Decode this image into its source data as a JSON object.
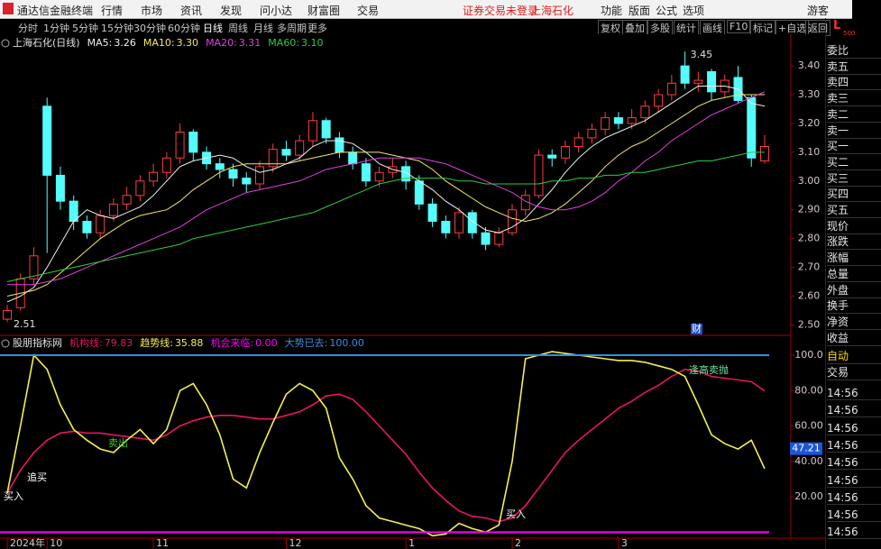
{
  "menu": {
    "brand": "通达信金融终端",
    "items": [
      "行情",
      "市场",
      "资讯",
      "发现",
      "问小达",
      "财富圈",
      "交易"
    ],
    "notice": "证券交易未登录",
    "stock": "上海石化",
    "right_items": [
      "功能",
      "版面",
      "公式",
      "选项"
    ],
    "user": "游客"
  },
  "toolbar": {
    "periods": [
      "分时",
      "1分钟",
      "5分钟",
      "15分钟",
      "30分钟",
      "60分钟",
      "日线",
      "周线",
      "月线",
      "多周期",
      "更多"
    ],
    "active": "日线",
    "tools": [
      "复权",
      "叠加",
      "多股",
      "统计",
      "画线",
      "F10",
      "标记",
      "+自选",
      "返回"
    ]
  },
  "sidebar": {
    "corner": "L",
    "corner_sub": "500",
    "quote_rows": [
      "委比",
      "卖五",
      "卖四",
      "卖三",
      "卖二",
      "卖一",
      "买一",
      "买二",
      "买三",
      "买四",
      "买五",
      "现价",
      "涨跌",
      "涨幅",
      "总量",
      "外盘",
      "换手",
      "净资",
      "收益"
    ],
    "trade_rows": [
      "自动",
      "交易"
    ],
    "times": [
      "14:56",
      "14:56",
      "14:56",
      "14:56",
      "14:56",
      "14:56",
      "14:56",
      "14:56",
      "14:56"
    ]
  },
  "chart_data": [
    {
      "type": "candlestick",
      "title": "上海石化(日线)",
      "legend_separator": ":",
      "categories": [
        "2024年",
        null,
        null,
        "10",
        null,
        null,
        null,
        null,
        null,
        null,
        null,
        "11",
        null,
        null,
        null,
        null,
        null,
        null,
        null,
        null,
        null,
        "12",
        null,
        null,
        null,
        null,
        null,
        null,
        null,
        null,
        "1",
        null,
        null,
        null,
        null,
        null,
        null,
        null,
        "2",
        null,
        null,
        null,
        null,
        null,
        null,
        null,
        "3",
        null,
        null,
        null,
        null,
        null,
        null,
        null,
        null,
        null,
        null,
        null
      ],
      "open": [
        2.52,
        2.56,
        2.66,
        3.26,
        3.02,
        2.93,
        2.86,
        2.82,
        2.88,
        2.92,
        2.95,
        3.0,
        3.03,
        3.08,
        3.17,
        3.1,
        3.06,
        3.04,
        3.01,
        2.99,
        3.05,
        3.11,
        3.09,
        3.14,
        3.21,
        3.15,
        3.1,
        3.06,
        3.0,
        3.03,
        3.05,
        3.0,
        2.92,
        2.86,
        2.82,
        2.89,
        2.82,
        2.78,
        2.82,
        2.9,
        2.95,
        3.09,
        3.08,
        3.12,
        3.15,
        3.18,
        3.22,
        3.2,
        3.22,
        3.26,
        3.3,
        3.4,
        3.34,
        3.38,
        3.31,
        3.36,
        3.29,
        3.07
      ],
      "high": [
        2.57,
        2.68,
        2.77,
        3.29,
        3.05,
        2.95,
        2.88,
        2.9,
        2.94,
        2.98,
        3.02,
        3.06,
        3.1,
        3.2,
        3.18,
        3.12,
        3.08,
        3.06,
        3.03,
        3.07,
        3.13,
        3.14,
        3.16,
        3.24,
        3.22,
        3.17,
        3.12,
        3.08,
        3.05,
        3.08,
        3.07,
        3.02,
        2.94,
        2.88,
        2.91,
        2.9,
        2.84,
        2.84,
        2.92,
        2.97,
        3.11,
        3.11,
        3.14,
        3.17,
        3.2,
        3.24,
        3.24,
        3.25,
        3.28,
        3.32,
        3.37,
        3.45,
        3.38,
        3.39,
        3.37,
        3.4,
        3.3,
        3.16
      ],
      "low": [
        2.51,
        2.55,
        2.64,
        2.75,
        2.9,
        2.83,
        2.8,
        2.8,
        2.86,
        2.9,
        2.93,
        2.98,
        3.01,
        3.06,
        3.07,
        3.04,
        3.01,
        2.98,
        2.96,
        2.97,
        3.03,
        3.07,
        3.07,
        3.12,
        3.13,
        3.08,
        3.04,
        2.98,
        2.98,
        3.01,
        2.97,
        2.9,
        2.84,
        2.8,
        2.8,
        2.8,
        2.76,
        2.77,
        2.81,
        2.88,
        2.94,
        3.05,
        3.06,
        3.1,
        3.13,
        3.16,
        3.18,
        3.18,
        3.2,
        3.24,
        3.28,
        3.32,
        3.31,
        3.28,
        3.29,
        3.27,
        3.05,
        3.06
      ],
      "close": [
        2.55,
        2.66,
        2.74,
        3.02,
        2.93,
        2.86,
        2.82,
        2.88,
        2.92,
        2.95,
        3.0,
        3.03,
        3.08,
        3.17,
        3.1,
        3.06,
        3.04,
        3.01,
        2.99,
        3.05,
        3.11,
        3.09,
        3.14,
        3.21,
        3.15,
        3.1,
        3.06,
        3.0,
        3.03,
        3.05,
        3.0,
        2.92,
        2.86,
        2.82,
        2.89,
        2.82,
        2.78,
        2.82,
        2.9,
        2.95,
        3.09,
        3.08,
        3.12,
        3.15,
        3.18,
        3.22,
        3.2,
        3.22,
        3.26,
        3.3,
        3.34,
        3.34,
        3.35,
        3.31,
        3.35,
        3.28,
        3.08,
        3.12
      ],
      "up_color": "#ff3c3c",
      "down_color": "#54fcfc",
      "series": [
        {
          "name": "MA5",
          "color": "#f0f0f0",
          "legend_value": "3.26",
          "values": [
            2.58,
            2.6,
            2.63,
            2.7,
            2.78,
            2.86,
            2.9,
            2.88,
            2.87,
            2.89,
            2.91,
            2.95,
            3.0,
            3.05,
            3.07,
            3.08,
            3.09,
            3.08,
            3.05,
            3.03,
            3.04,
            3.06,
            3.08,
            3.12,
            3.14,
            3.14,
            3.13,
            3.1,
            3.06,
            3.04,
            3.03,
            3.0,
            2.97,
            2.93,
            2.9,
            2.86,
            2.83,
            2.82,
            2.84,
            2.87,
            2.92,
            2.97,
            3.03,
            3.08,
            3.12,
            3.15,
            3.17,
            3.19,
            3.21,
            3.24,
            3.27,
            3.3,
            3.33,
            3.33,
            3.33,
            3.32,
            3.27,
            3.26
          ]
        },
        {
          "name": "MA10",
          "color": "#f5e663",
          "legend_value": "3.30",
          "values": [
            2.6,
            2.61,
            2.62,
            2.64,
            2.68,
            2.72,
            2.76,
            2.8,
            2.83,
            2.86,
            2.88,
            2.89,
            2.9,
            2.93,
            2.97,
            3.0,
            3.03,
            3.05,
            3.06,
            3.06,
            3.06,
            3.06,
            3.07,
            3.08,
            3.09,
            3.1,
            3.1,
            3.1,
            3.1,
            3.09,
            3.08,
            3.07,
            3.04,
            3.0,
            2.97,
            2.94,
            2.91,
            2.89,
            2.87,
            2.86,
            2.87,
            2.89,
            2.92,
            2.96,
            3.0,
            3.05,
            3.09,
            3.12,
            3.14,
            3.17,
            3.2,
            3.23,
            3.26,
            3.28,
            3.29,
            3.3,
            3.3,
            3.3
          ]
        },
        {
          "name": "MA20",
          "color": "#e040e0",
          "legend_value": "3.31",
          "values": [
            2.64,
            2.64,
            2.64,
            2.65,
            2.66,
            2.68,
            2.7,
            2.72,
            2.74,
            2.76,
            2.78,
            2.8,
            2.82,
            2.84,
            2.87,
            2.9,
            2.92,
            2.94,
            2.96,
            2.97,
            2.98,
            2.99,
            3.0,
            3.02,
            3.04,
            3.05,
            3.06,
            3.07,
            3.08,
            3.08,
            3.08,
            3.08,
            3.07,
            3.06,
            3.04,
            3.02,
            3.0,
            2.98,
            2.96,
            2.93,
            2.91,
            2.9,
            2.9,
            2.91,
            2.93,
            2.96,
            3.0,
            3.03,
            3.07,
            3.1,
            3.14,
            3.17,
            3.2,
            3.23,
            3.25,
            3.27,
            3.29,
            3.31
          ]
        },
        {
          "name": "MA60",
          "color": "#2ecc40",
          "legend_value": "3.10",
          "values": [
            2.65,
            2.66,
            2.67,
            2.68,
            2.69,
            2.7,
            2.71,
            2.72,
            2.73,
            2.74,
            2.75,
            2.76,
            2.77,
            2.78,
            2.8,
            2.81,
            2.82,
            2.83,
            2.84,
            2.85,
            2.86,
            2.87,
            2.88,
            2.89,
            2.91,
            2.93,
            2.95,
            2.97,
            2.99,
            3.0,
            3.01,
            3.01,
            3.01,
            3.01,
            3.0,
            3.0,
            2.99,
            2.99,
            2.99,
            2.99,
            2.99,
            3.0,
            3.0,
            3.01,
            3.01,
            3.02,
            3.02,
            3.03,
            3.03,
            3.04,
            3.05,
            3.06,
            3.07,
            3.07,
            3.08,
            3.09,
            3.1,
            3.1
          ]
        }
      ],
      "ylim": [
        2.47,
        3.51
      ],
      "yticks": [
        {
          "value": 3.4,
          "label": "3.40"
        },
        {
          "value": 3.3,
          "label": "3.30"
        },
        {
          "value": 3.2,
          "label": "3.20"
        },
        {
          "value": 3.1,
          "label": "3.10"
        },
        {
          "value": 3.0,
          "label": "3.00"
        },
        {
          "value": 2.9,
          "label": "2.90"
        },
        {
          "value": 2.8,
          "label": "2.80"
        },
        {
          "value": 2.7,
          "label": "2.70"
        },
        {
          "value": 2.6,
          "label": "2.60"
        },
        {
          "value": 2.5,
          "label": "2.50"
        }
      ],
      "max_label": 3.45,
      "min_label": 2.51,
      "event_label": "财"
    },
    {
      "type": "line",
      "title": "股朋指标网",
      "legend_separator": ":",
      "series": [
        {
          "name": "机构线",
          "color": "#e8175d",
          "values": [
            22,
            35,
            45,
            52,
            56,
            57,
            56,
            56,
            55,
            54,
            53,
            52,
            55,
            60,
            63,
            65,
            66,
            66,
            65,
            64,
            64,
            66,
            68,
            72,
            77,
            78,
            75,
            68,
            60,
            52,
            44,
            34,
            25,
            18,
            12,
            9,
            8,
            6,
            8,
            15,
            25,
            35,
            45,
            52,
            58,
            64,
            70,
            74,
            79,
            83,
            88,
            92,
            91,
            88,
            87,
            86,
            85,
            79.83
          ]
        },
        {
          "name": "趋势线",
          "color": "#f5f050",
          "values": [
            22,
            60,
            100,
            92,
            72,
            58,
            52,
            47,
            45,
            52,
            58,
            50,
            58,
            80,
            84,
            72,
            55,
            30,
            25,
            45,
            62,
            78,
            84,
            80,
            70,
            42,
            30,
            15,
            8,
            6,
            4,
            2,
            -2,
            -1,
            5,
            2,
            0,
            4,
            40,
            98,
            100,
            102,
            101,
            100,
            99,
            98,
            97,
            97,
            96,
            94,
            92,
            88,
            72,
            55,
            50,
            47,
            52,
            35.88
          ]
        },
        {
          "name": "机会来临",
          "color": "#ff00ff",
          "level": 0,
          "level_label": "0.00"
        },
        {
          "name": "大势已去",
          "color": "#3a8dde",
          "level": 100,
          "level_label": "100.00"
        }
      ],
      "ylim": [
        -3.4,
        104.6
      ],
      "yticks": [
        {
          "value": 100,
          "label": "100.0"
        },
        {
          "value": 80,
          "label": "80.00"
        },
        {
          "value": 60,
          "label": "60.00"
        },
        {
          "value": 40,
          "label": "40.00"
        },
        {
          "value": 20,
          "label": "20.00"
        }
      ],
      "cursor": 47.21,
      "annotations": [
        {
          "text": "买入",
          "color": "#ffffff"
        },
        {
          "text": "追买",
          "color": "#ffffff"
        },
        {
          "text": "卖出",
          "color": "#3cc83c"
        },
        {
          "text": "买入",
          "color": "#ffffff"
        },
        {
          "text": "逢高卖抛",
          "color": "#6fe0a0"
        }
      ]
    }
  ]
}
